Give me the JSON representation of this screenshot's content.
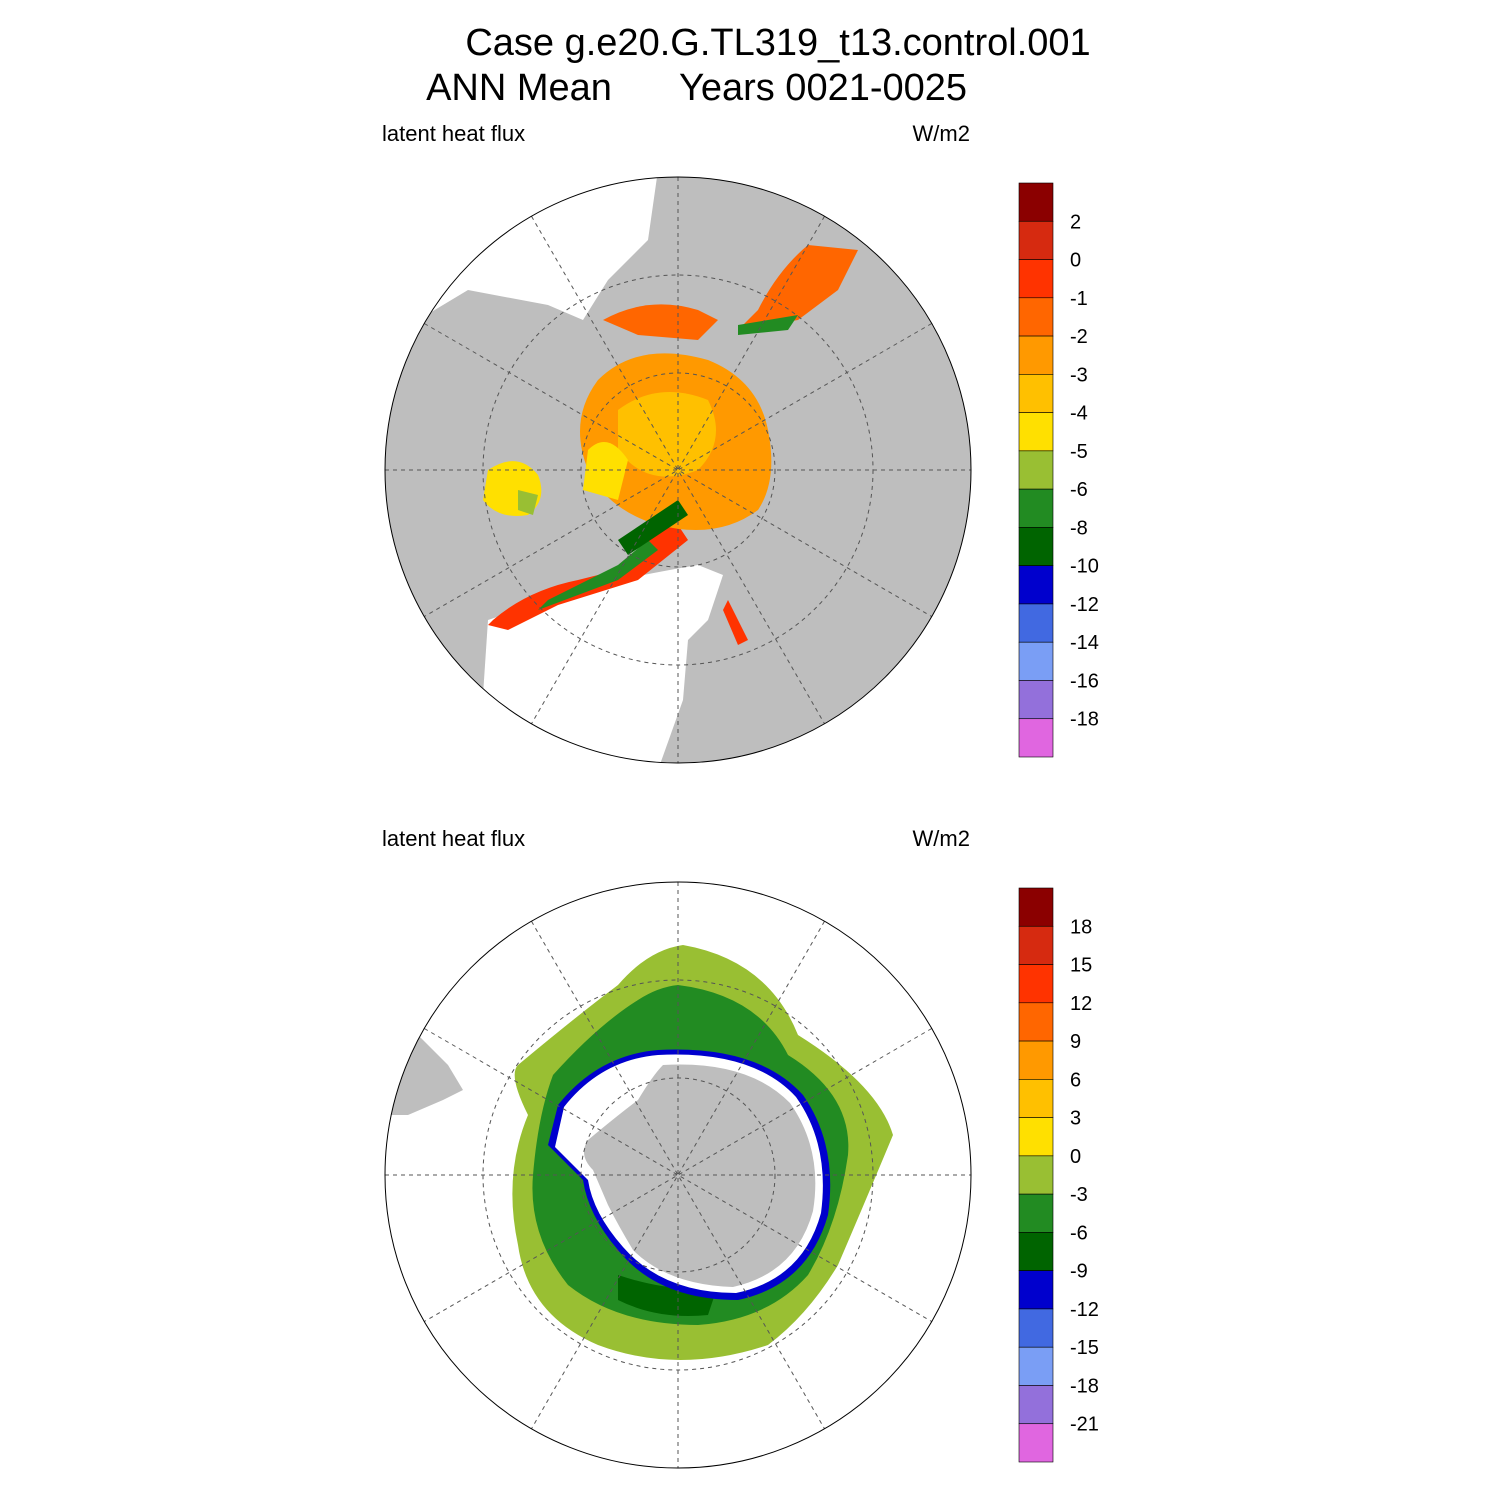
{
  "title": [
    "Case g.e20.G.TL319_t13.control.001",
    "ANN Mean",
    "Years 0021-0025"
  ],
  "panels": [
    {
      "left_label": "latent heat flux",
      "right_label": "W/m2",
      "colorbar": {
        "colors": [
          "#8b0000",
          "#d62a10",
          "#ff3300",
          "#ff6600",
          "#ff9900",
          "#ffc000",
          "#ffe000",
          "#99bf33",
          "#228b22",
          "#006400",
          "#0000cd",
          "#4169e1",
          "#7a9ef5",
          "#9370db",
          "#e066e0"
        ],
        "labels": [
          "2",
          "0",
          "-1",
          "-2",
          "-3",
          "-4",
          "-5",
          "-6",
          "-8",
          "-10",
          "-12",
          "-14",
          "-16",
          "-18"
        ]
      }
    },
    {
      "left_label": "latent heat flux",
      "right_label": "W/m2",
      "colorbar": {
        "colors": [
          "#8b0000",
          "#d62a10",
          "#ff3300",
          "#ff6600",
          "#ff9900",
          "#ffc000",
          "#ffe000",
          "#99bf33",
          "#228b22",
          "#006400",
          "#0000cd",
          "#4169e1",
          "#7a9ef5",
          "#9370db",
          "#e066e0"
        ],
        "labels": [
          "18",
          "15",
          "12",
          "9",
          "6",
          "3",
          "0",
          "-3",
          "-6",
          "-9",
          "-12",
          "-15",
          "-18",
          "-21"
        ]
      }
    }
  ]
}
